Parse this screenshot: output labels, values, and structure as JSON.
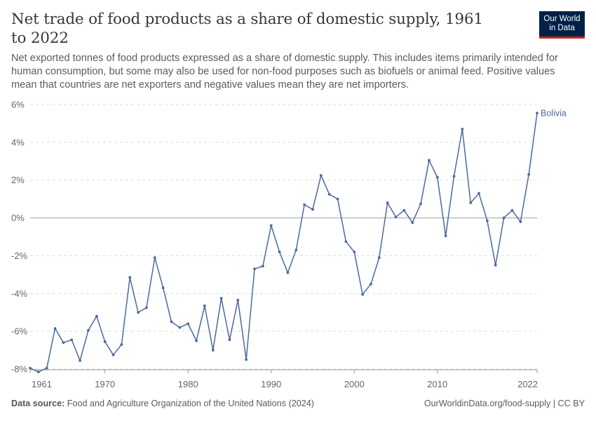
{
  "header": {
    "title": "Net trade of food products as a share of domestic supply, 1961 to 2022",
    "subtitle": "Net exported tonnes of food products expressed as a share of domestic supply. This includes items primarily intended for human consumption, but some may also be used for non-food purposes such as biofuels or animal feed. Positive values mean that countries are net exporters and negative values mean they are net importers.",
    "logo_line1": "Our World",
    "logo_line2": "in Data"
  },
  "footer": {
    "source_label": "Data source:",
    "source_text": "Food and Agriculture Organization of the United Nations (2024)",
    "link": "OurWorldinData.org/food-supply | CC BY"
  },
  "colors": {
    "series": "#4c6a9c",
    "grid": "#dddddd",
    "zero_line": "#a1a1a1",
    "logo_bg": "#002147",
    "logo_bar": "#ce261e"
  },
  "chart_data": {
    "type": "line",
    "title": "Net trade of food products as a share of domestic supply, 1961 to 2022",
    "xlabel": "",
    "ylabel": "",
    "xlim": [
      1961,
      2022
    ],
    "ylim": [
      -8,
      6
    ],
    "y_ticks": [
      -8,
      -6,
      -4,
      -2,
      0,
      2,
      4,
      6
    ],
    "y_tick_labels": [
      "-8%",
      "-6%",
      "-4%",
      "-2%",
      "0%",
      "2%",
      "4%",
      "6%"
    ],
    "x_ticks": [
      1961,
      1970,
      1980,
      1990,
      2000,
      2010,
      2022
    ],
    "x_tick_labels": [
      "1961",
      "1970",
      "1980",
      "1990",
      "2000",
      "2010",
      "2022"
    ],
    "grid": "horizontal dashed",
    "legend": "end-of-line label",
    "series": [
      {
        "name": "Bolivia",
        "x": [
          1961,
          1962,
          1963,
          1964,
          1965,
          1966,
          1967,
          1968,
          1969,
          1970,
          1971,
          1972,
          1973,
          1974,
          1975,
          1976,
          1977,
          1978,
          1979,
          1980,
          1981,
          1982,
          1983,
          1984,
          1985,
          1986,
          1987,
          1988,
          1989,
          1990,
          1991,
          1992,
          1993,
          1994,
          1995,
          1996,
          1997,
          1998,
          1999,
          2000,
          2001,
          2002,
          2003,
          2004,
          2005,
          2006,
          2007,
          2008,
          2009,
          2010,
          2011,
          2012,
          2013,
          2014,
          2015,
          2016,
          2017,
          2018,
          2019,
          2020,
          2021,
          2022
        ],
        "y": [
          -7.95,
          -8.15,
          -7.95,
          -5.85,
          -6.6,
          -6.45,
          -7.55,
          -5.95,
          -5.2,
          -6.55,
          -7.25,
          -6.7,
          -3.15,
          -5.0,
          -4.75,
          -2.1,
          -3.7,
          -5.5,
          -5.8,
          -5.6,
          -6.5,
          -4.65,
          -7.0,
          -4.25,
          -6.45,
          -4.35,
          -7.5,
          -2.7,
          -2.55,
          -0.4,
          -1.8,
          -2.9,
          -1.7,
          0.7,
          0.45,
          2.25,
          1.25,
          1.0,
          -1.25,
          -1.8,
          -4.05,
          -3.5,
          -2.1,
          0.8,
          0.05,
          0.4,
          -0.25,
          0.75,
          3.05,
          2.15,
          -0.95,
          2.2,
          4.7,
          0.8,
          1.3,
          -0.15,
          -2.5,
          0.0,
          0.4,
          -0.2,
          2.3,
          5.55
        ]
      }
    ]
  }
}
